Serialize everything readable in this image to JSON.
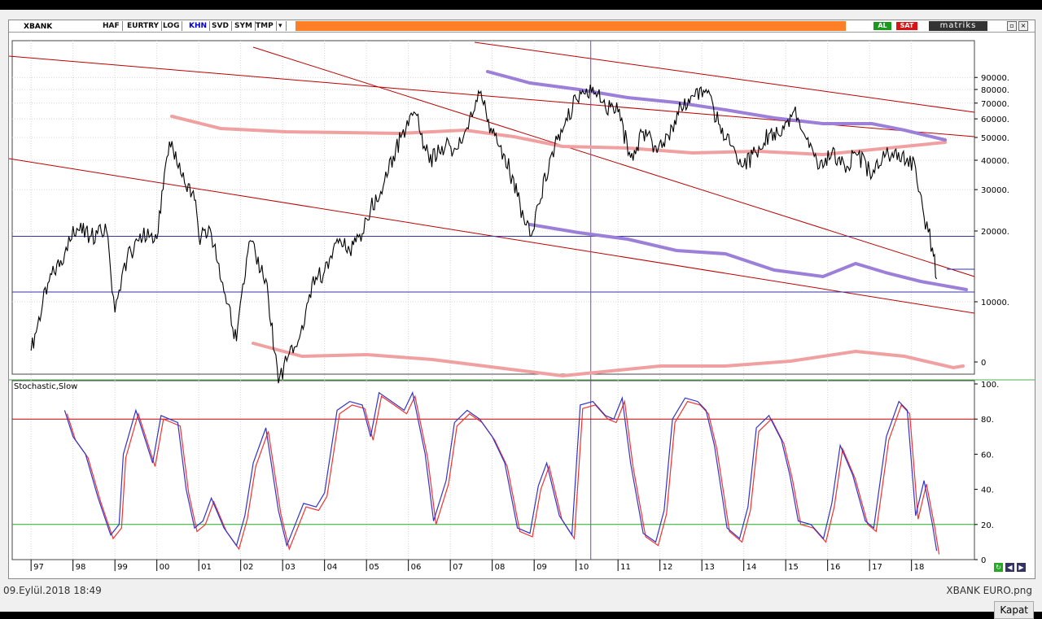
{
  "toolbar": {
    "symbol": "XBANK",
    "buttons": [
      "HAF",
      "EURTRY",
      "LOG",
      "KHN",
      "SVD",
      "SYM",
      "TMP"
    ],
    "buy_label": "AL",
    "sell_label": "SAT",
    "brand": "matriks"
  },
  "price_axis": {
    "labels": [
      "90000.",
      "80000.",
      "70000.",
      "60000.",
      "50000.",
      "40000.",
      "30000.",
      "20000.",
      "10000.",
      "0"
    ]
  },
  "indicator": {
    "title": "Stochastic,Slow",
    "labels": [
      "100.",
      "80.",
      "60.",
      "40.",
      "20.",
      "0"
    ]
  },
  "x_axis": {
    "labels": [
      "97",
      "98",
      "99",
      "00",
      "01",
      "02",
      "03",
      "04",
      "05",
      "06",
      "07",
      "08",
      "09",
      "10",
      "11",
      "12",
      "13",
      "14",
      "15",
      "16",
      "17",
      "18"
    ]
  },
  "status": {
    "datetime": "09.Eylül.2018 18:49",
    "filename": "XBANK EURO.png",
    "close_label": "Kapat"
  },
  "chart_data": [
    {
      "type": "line",
      "log_scale": true,
      "y_ticks": [
        10000,
        20000,
        30000,
        40000,
        50000,
        60000,
        70000,
        80000,
        90000
      ],
      "series": [
        {
          "x": [
            1997.0,
            1997.4,
            1997.8,
            1998.0,
            1998.4,
            1998.8,
            1999.0,
            1999.2,
            1999.6,
            2000.0,
            2000.3,
            2000.6,
            2000.9,
            2001.0,
            2001.3,
            2001.6,
            2001.9,
            2002.2,
            2002.6,
            2002.9,
            2003.1,
            2003.4,
            2003.7,
            2004.0,
            2004.3,
            2004.6,
            2004.9,
            2005.1,
            2005.4,
            2005.7,
            2006.0,
            2006.2,
            2006.5,
            2006.8,
            2007.1,
            2007.4,
            2007.7,
            2008.0,
            2008.3,
            2008.6,
            2008.9,
            2009.1,
            2009.4,
            2009.7,
            2010.0,
            2010.4,
            2010.7,
            2011.0,
            2011.3,
            2011.6,
            2011.9,
            2012.2,
            2012.5,
            2012.8,
            2013.1,
            2013.4,
            2013.7,
            2014.0,
            2014.3,
            2014.6,
            2014.9,
            2015.2,
            2015.5,
            2015.8,
            2016.1,
            2016.4,
            2016.7,
            2017.0,
            2017.3,
            2017.6,
            2017.9,
            2018.1,
            2018.3,
            2018.5,
            2018.6
          ],
          "y": [
            6200,
            12000,
            16000,
            21000,
            19000,
            20000,
            9000,
            14000,
            19500,
            18500,
            48000,
            34000,
            27000,
            19000,
            19500,
            11000,
            6800,
            18000,
            12500,
            4500,
            5600,
            7000,
            12000,
            13500,
            18500,
            16500,
            19500,
            25000,
            31000,
            45000,
            56000,
            62000,
            39000,
            46000,
            45000,
            55000,
            77000,
            52000,
            42000,
            28000,
            19000,
            26000,
            42000,
            55000,
            73000,
            82000,
            67000,
            64000,
            41000,
            53000,
            46000,
            51000,
            68000,
            75000,
            80000,
            57000,
            46000,
            38000,
            43000,
            52000,
            51000,
            65000,
            49000,
            37000,
            43000,
            38000,
            42000,
            36000,
            40000,
            44000,
            41000,
            37000,
            23000,
            17000,
            12500
          ]
        }
      ]
    },
    {
      "type": "line",
      "ylim": [
        0,
        100
      ],
      "y_ticks": [
        0,
        20,
        40,
        60,
        80,
        100
      ],
      "reference_lines": [
        80,
        20
      ],
      "series": [
        {
          "x": [
            1997.8,
            1998.0,
            1998.3,
            1998.6,
            1998.9,
            1999.1,
            1999.2,
            1999.5,
            1999.7,
            1999.9,
            2000.1,
            2000.3,
            2000.5,
            2000.7,
            2000.9,
            2001.1,
            2001.3,
            2001.6,
            2001.9,
            2002.1,
            2002.3,
            2002.6,
            2002.9,
            2003.1,
            2003.3,
            2003.5,
            2003.8,
            2004.0,
            2004.3,
            2004.6,
            2004.9,
            2005.1,
            2005.3,
            2005.6,
            2005.9,
            2006.1,
            2006.4,
            2006.6,
            2006.9,
            2007.1,
            2007.4,
            2007.7,
            2008.0,
            2008.3,
            2008.6,
            2008.9,
            2009.1,
            2009.3,
            2009.6,
            2009.9,
            2010.1,
            2010.4,
            2010.7,
            2010.9,
            2011.1,
            2011.3,
            2011.6,
            2011.9,
            2012.1,
            2012.3,
            2012.6,
            2012.9,
            2013.1,
            2013.3,
            2013.6,
            2013.9,
            2014.1,
            2014.3,
            2014.6,
            2014.9,
            2015.1,
            2015.3,
            2015.6,
            2015.9,
            2016.1,
            2016.3,
            2016.6,
            2016.9,
            2017.1,
            2017.4,
            2017.7,
            2017.9,
            2018.1,
            2018.3,
            2018.5,
            2018.6
          ],
          "y": [
            85,
            70,
            60,
            35,
            14,
            20,
            60,
            85,
            70,
            55,
            82,
            80,
            78,
            40,
            18,
            22,
            35,
            18,
            8,
            25,
            55,
            75,
            28,
            8,
            20,
            32,
            30,
            38,
            85,
            90,
            88,
            70,
            95,
            90,
            85,
            95,
            60,
            22,
            45,
            78,
            85,
            80,
            70,
            55,
            18,
            15,
            42,
            55,
            25,
            14,
            88,
            90,
            82,
            80,
            92,
            55,
            15,
            10,
            28,
            80,
            92,
            90,
            85,
            65,
            18,
            12,
            30,
            75,
            82,
            68,
            48,
            22,
            20,
            12,
            32,
            65,
            48,
            22,
            18,
            70,
            90,
            85,
            25,
            45,
            20,
            5
          ]
        }
      ]
    }
  ]
}
